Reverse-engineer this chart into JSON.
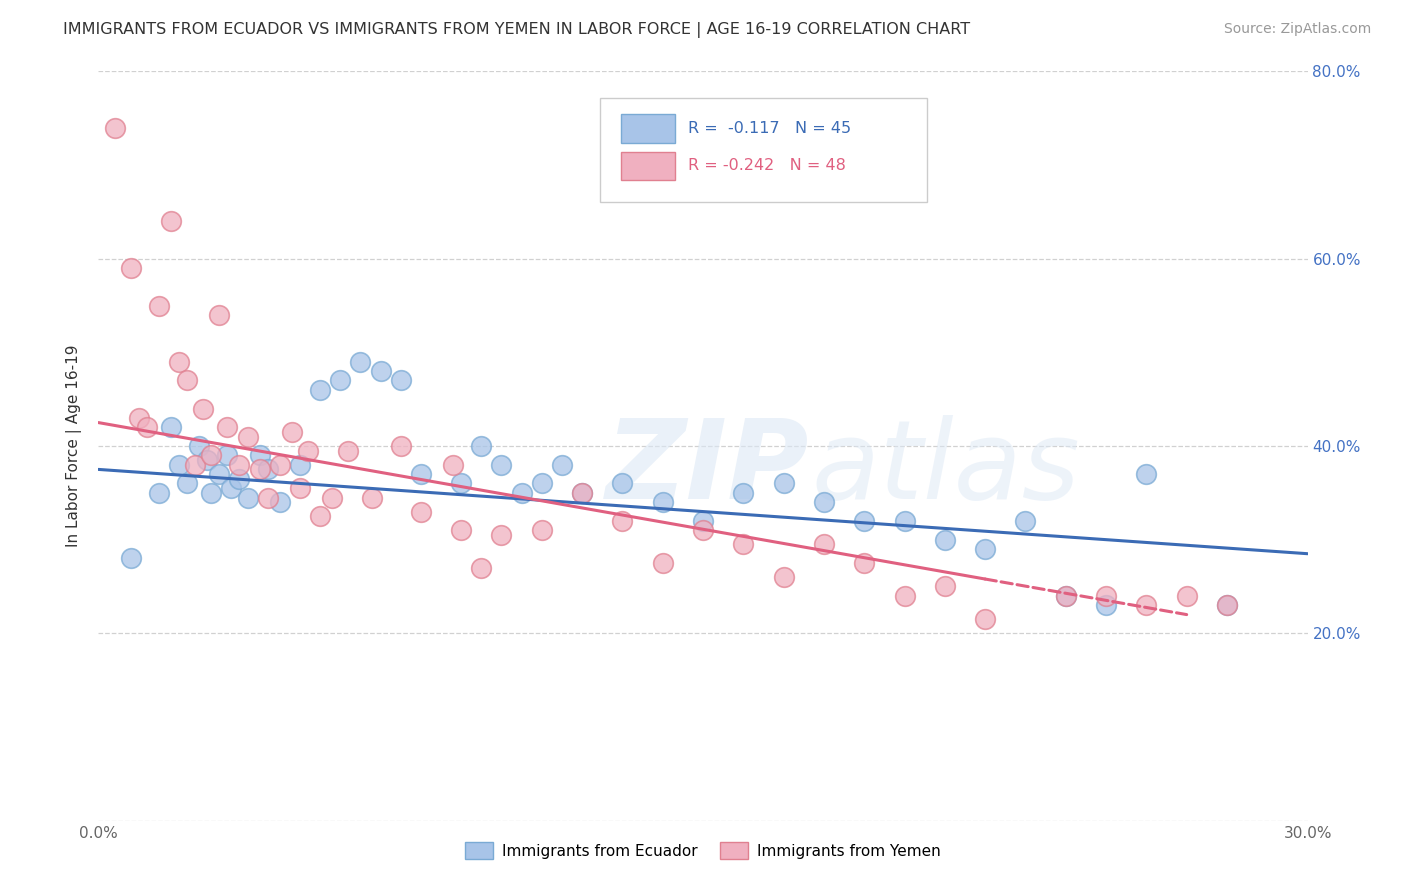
{
  "title": "IMMIGRANTS FROM ECUADOR VS IMMIGRANTS FROM YEMEN IN LABOR FORCE | AGE 16-19 CORRELATION CHART",
  "source": "Source: ZipAtlas.com",
  "ylabel": "In Labor Force | Age 16-19",
  "xlim": [
    0.0,
    0.3
  ],
  "ylim": [
    0.0,
    0.8
  ],
  "x_ticks": [
    0.0,
    0.05,
    0.1,
    0.15,
    0.2,
    0.25,
    0.3
  ],
  "y_ticks": [
    0.0,
    0.2,
    0.4,
    0.6,
    0.8
  ],
  "ecuador_color": "#a8c4e8",
  "ecuador_edge_color": "#7aaad4",
  "ecuador_line_color": "#3b6bb5",
  "yemen_color": "#f0b0c0",
  "yemen_edge_color": "#e08090",
  "yemen_line_color": "#e06080",
  "R_ecuador": -0.117,
  "N_ecuador": 45,
  "R_yemen": -0.242,
  "N_yemen": 48,
  "legend_label_ecuador": "Immigrants from Ecuador",
  "legend_label_yemen": "Immigrants from Yemen",
  "ecuador_x": [
    0.008,
    0.015,
    0.018,
    0.02,
    0.022,
    0.025,
    0.027,
    0.028,
    0.03,
    0.032,
    0.033,
    0.035,
    0.037,
    0.04,
    0.042,
    0.045,
    0.05,
    0.055,
    0.06,
    0.065,
    0.07,
    0.075,
    0.08,
    0.09,
    0.095,
    0.1,
    0.105,
    0.11,
    0.115,
    0.12,
    0.13,
    0.14,
    0.15,
    0.16,
    0.17,
    0.18,
    0.19,
    0.2,
    0.21,
    0.22,
    0.23,
    0.24,
    0.25,
    0.26,
    0.28
  ],
  "ecuador_y": [
    0.28,
    0.35,
    0.42,
    0.38,
    0.36,
    0.4,
    0.385,
    0.35,
    0.37,
    0.39,
    0.355,
    0.365,
    0.345,
    0.39,
    0.375,
    0.34,
    0.38,
    0.46,
    0.47,
    0.49,
    0.48,
    0.47,
    0.37,
    0.36,
    0.4,
    0.38,
    0.35,
    0.36,
    0.38,
    0.35,
    0.36,
    0.34,
    0.32,
    0.35,
    0.36,
    0.34,
    0.32,
    0.32,
    0.3,
    0.29,
    0.32,
    0.24,
    0.23,
    0.37,
    0.23
  ],
  "yemen_x": [
    0.004,
    0.008,
    0.01,
    0.012,
    0.015,
    0.018,
    0.02,
    0.022,
    0.024,
    0.026,
    0.028,
    0.03,
    0.032,
    0.035,
    0.037,
    0.04,
    0.042,
    0.045,
    0.048,
    0.05,
    0.052,
    0.055,
    0.058,
    0.062,
    0.068,
    0.075,
    0.08,
    0.088,
    0.09,
    0.095,
    0.1,
    0.11,
    0.12,
    0.13,
    0.14,
    0.15,
    0.16,
    0.17,
    0.18,
    0.19,
    0.2,
    0.21,
    0.22,
    0.24,
    0.25,
    0.26,
    0.27,
    0.28
  ],
  "yemen_y": [
    0.74,
    0.59,
    0.43,
    0.42,
    0.55,
    0.64,
    0.49,
    0.47,
    0.38,
    0.44,
    0.39,
    0.54,
    0.42,
    0.38,
    0.41,
    0.375,
    0.345,
    0.38,
    0.415,
    0.355,
    0.395,
    0.325,
    0.345,
    0.395,
    0.345,
    0.4,
    0.33,
    0.38,
    0.31,
    0.27,
    0.305,
    0.31,
    0.35,
    0.32,
    0.275,
    0.31,
    0.295,
    0.26,
    0.295,
    0.275,
    0.24,
    0.25,
    0.215,
    0.24,
    0.24,
    0.23,
    0.24,
    0.23
  ],
  "ecuador_line_x0": 0.0,
  "ecuador_line_y0": 0.375,
  "ecuador_line_x1": 0.3,
  "ecuador_line_y1": 0.285,
  "yemen_line_x0": 0.0,
  "yemen_line_y0": 0.425,
  "yemen_line_x1": 0.27,
  "yemen_line_y1": 0.22
}
